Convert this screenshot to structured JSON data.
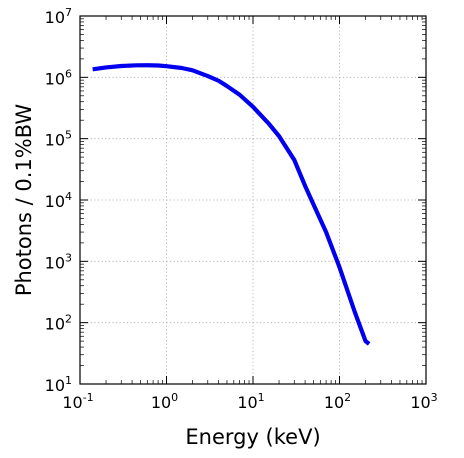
{
  "chart_data": {
    "type": "line",
    "title": "",
    "xlabel": "Energy (keV)",
    "ylabel": "Photons / 0.1%BW",
    "xscale": "log",
    "yscale": "log",
    "xlim": [
      0.1,
      1000
    ],
    "ylim": [
      10,
      10000000
    ],
    "grid": true,
    "legend": "none",
    "x_ticks": [
      {
        "base": "10",
        "exp": "-1",
        "value": 0.1
      },
      {
        "base": "10",
        "exp": "0",
        "value": 1
      },
      {
        "base": "10",
        "exp": "1",
        "value": 10
      },
      {
        "base": "10",
        "exp": "2",
        "value": 100
      },
      {
        "base": "10",
        "exp": "3",
        "value": 1000
      }
    ],
    "y_ticks": [
      {
        "base": "10",
        "exp": "1",
        "value": 10
      },
      {
        "base": "10",
        "exp": "2",
        "value": 100
      },
      {
        "base": "10",
        "exp": "3",
        "value": 1000
      },
      {
        "base": "10",
        "exp": "4",
        "value": 10000
      },
      {
        "base": "10",
        "exp": "5",
        "value": 100000
      },
      {
        "base": "10",
        "exp": "6",
        "value": 1000000
      },
      {
        "base": "10",
        "exp": "7",
        "value": 10000000
      }
    ],
    "series": [
      {
        "color": "#0000ee",
        "x": [
          0.14,
          0.2,
          0.3,
          0.45,
          0.6,
          0.8,
          1.0,
          1.5,
          2.0,
          3.0,
          4.0,
          5.0,
          7.0,
          10,
          15,
          20,
          30,
          40,
          50,
          70,
          100,
          150,
          200,
          220
        ],
        "y": [
          1350000,
          1450000,
          1530000,
          1570000,
          1575000,
          1560000,
          1520000,
          1420000,
          1300000,
          1050000,
          880000,
          720000,
          520000,
          330000,
          180000,
          110000,
          45000,
          17000,
          8500,
          3000,
          800,
          150,
          50,
          45
        ]
      }
    ]
  }
}
